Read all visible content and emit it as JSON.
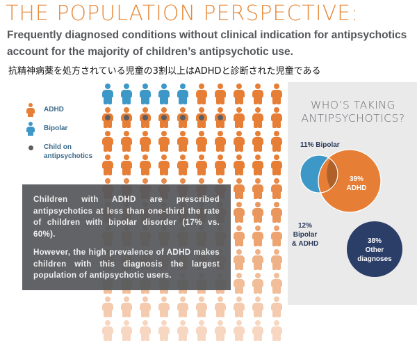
{
  "header": {
    "title": "THE POPULATION PERSPECTIVE:",
    "subtitle": "Frequently diagnosed conditions without clinical indication for antipsychotics account for the majority of children’s antipsychotic use.",
    "japanese_caption": "抗精神病薬を処方されている児童の3割以上はADHDと診断された児童である"
  },
  "legend": {
    "adhd": "ADHD",
    "bipolar": "Bipolar",
    "child_on_antipsychotics": "Child on antipsychotics"
  },
  "colors": {
    "orange": "#e67e36",
    "blue": "#3d98c8",
    "navy": "#2b3e68",
    "dot": "#5c5e62",
    "overlay": "#55575b",
    "panel": "#eaeaeb"
  },
  "pictogram": {
    "rows": 11,
    "columns": 10,
    "bipolar_icons": 5,
    "icons_with_dot": 7
  },
  "overlay": {
    "paragraph_1": "Children with ADHD are prescribed antipsychotics at less than one-third the rate of children with bipolar disorder (17% vs. 60%).",
    "paragraph_2": "However, the high prevalence of ADHD makes children with this diagnosis the largest population of antipsychotic users."
  },
  "panel": {
    "title": "WHO’S TAKING ANTIPSYCHOTICS?",
    "segments": {
      "bipolar": {
        "label": "11% Bipolar",
        "percent": 11
      },
      "adhd": {
        "pct": "39%",
        "name": "ADHD",
        "percent": 39
      },
      "both": {
        "pct": "12%",
        "line1": "Bipolar",
        "line2": "& ADHD",
        "percent": 12
      },
      "other": {
        "pct": "38%",
        "line1": "Other",
        "line2": "diagnoses",
        "percent": 38
      }
    }
  }
}
